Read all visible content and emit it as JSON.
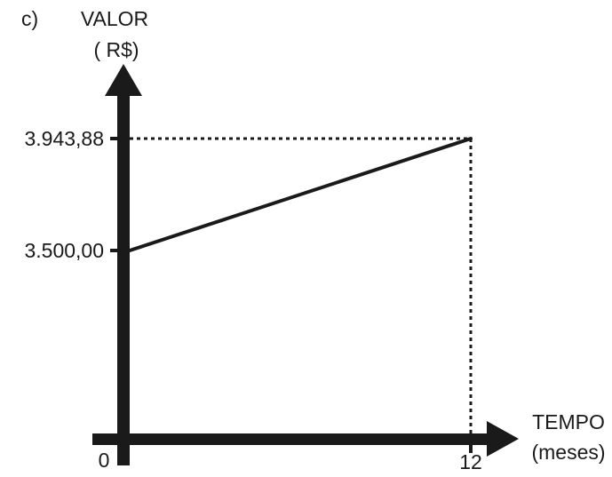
{
  "panel_label": "c)",
  "chart_data": {
    "type": "line",
    "ylabel_line1": "VALOR",
    "ylabel_line2": "( R$)",
    "xlabel_line1": "TEMPO",
    "xlabel_line2": "(meses)",
    "x_ticks": [
      "0",
      "12"
    ],
    "y_ticks": [
      "3.500,00",
      "3.943,88"
    ],
    "x": [
      0,
      12
    ],
    "y": [
      3500.0,
      3943.88
    ],
    "guides": "dotted",
    "color": "#1a1a1a"
  }
}
